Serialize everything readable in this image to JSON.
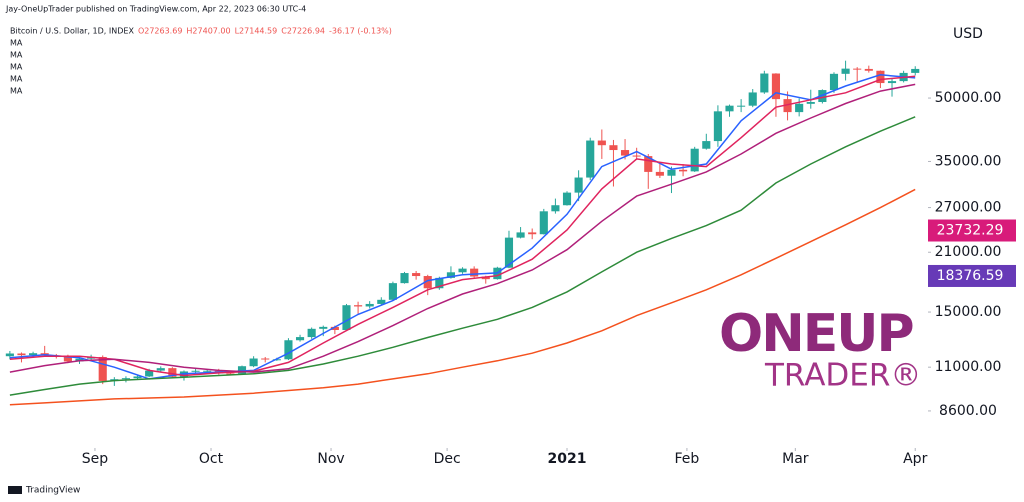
{
  "header": {
    "published": "Jay-OneUpTrader published on TradingView.com, Apr 22, 2023 06:30 UTC-4"
  },
  "chart_data": {
    "type": "candlestick",
    "symbol": "Bitcoin / U.S. Dollar, 1D, INDEX",
    "legend_values": [
      "O27263.69",
      "H27407.00",
      "L27144.59",
      "C27226.94",
      "-36.17 (-0.13%)"
    ],
    "currency": "USD",
    "log_scale": true,
    "up_color": "#26a69a",
    "down_color": "#ef5350",
    "ylim": [
      7100,
      76700
    ],
    "yticks": [
      {
        "value": 50000,
        "label": "50000.00"
      },
      {
        "value": 35000,
        "label": "35000.00"
      },
      {
        "value": 27000,
        "label": "27000.00"
      },
      {
        "value": 21000,
        "label": "21000.00"
      },
      {
        "value": 15000,
        "label": "15000.00"
      },
      {
        "value": 11000,
        "label": "11000.00"
      },
      {
        "value": 8600,
        "label": "8600.00"
      }
    ],
    "price_tags": [
      {
        "value": 23732.29,
        "color": "#d81b7a"
      },
      {
        "value": 18376.59,
        "color": "#673ab7"
      }
    ],
    "xlim": [
      -0.85,
      79.1
    ],
    "xticks": [
      {
        "value": 7.33,
        "label": "Sep"
      },
      {
        "value": 17.33,
        "label": "Oct"
      },
      {
        "value": 27.67,
        "label": "Nov"
      },
      {
        "value": 37.67,
        "label": "Dec"
      },
      {
        "value": 48,
        "label": "2021"
      },
      {
        "value": 58.33,
        "label": "Feb"
      },
      {
        "value": 67.67,
        "label": "Mar"
      },
      {
        "value": 78,
        "label": "Apr"
      }
    ],
    "candles": {
      "open": [
        11700,
        11880,
        11770,
        11900,
        11750,
        11680,
        11360,
        11540,
        11650,
        10180,
        10280,
        10340,
        10440,
        10790,
        10940,
        10420,
        10740,
        10780,
        10780,
        10620,
        10600,
        11060,
        11550,
        11500,
        11500,
        12800,
        13030,
        13650,
        13800,
        13560,
        15590,
        15480,
        15700,
        16070,
        17650,
        18680,
        18370,
        17150,
        18180,
        18760,
        19150,
        18320,
        18050,
        19250,
        22800,
        23480,
        23240,
        26440,
        27360,
        29370,
        31970,
        39370,
        38350,
        37320,
        36180,
        36070,
        33000,
        32300,
        33400,
        33100,
        37600,
        39250,
        46400,
        47900,
        47900,
        51600,
        57400,
        49700,
        46200,
        48400,
        48900,
        52300,
        57300,
        59000,
        58900,
        58300,
        54400,
        55000,
        57600
      ],
      "high": [
        12050,
        11950,
        12000,
        12400,
        11850,
        11800,
        11600,
        11800,
        11750,
        10400,
        10450,
        10500,
        10900,
        11050,
        11000,
        10800,
        10900,
        10850,
        10900,
        10700,
        11100,
        11700,
        11650,
        11600,
        12950,
        13200,
        13750,
        13900,
        13900,
        15700,
        15900,
        15950,
        16300,
        17800,
        18800,
        18900,
        18500,
        18300,
        19400,
        19300,
        19400,
        18400,
        19350,
        23700,
        24200,
        24000,
        26800,
        28400,
        29600,
        33300,
        40000,
        41900,
        39500,
        39700,
        37800,
        36500,
        34900,
        34000,
        34500,
        38000,
        40900,
        48000,
        48200,
        49700,
        52600,
        58300,
        57500,
        51900,
        49900,
        52400,
        52500,
        57800,
        61700,
        59500,
        60000,
        58400,
        55800,
        58300,
        59800
      ],
      "low": [
        11500,
        11300,
        11650,
        11700,
        11550,
        11250,
        11200,
        11450,
        10000,
        9900,
        10100,
        10250,
        10400,
        10700,
        10350,
        10200,
        10650,
        10600,
        10550,
        10500,
        10550,
        11000,
        11300,
        11400,
        11450,
        12700,
        12900,
        13100,
        13250,
        13500,
        14800,
        15300,
        15650,
        16000,
        17600,
        18000,
        16500,
        17000,
        18100,
        18600,
        18200,
        17600,
        18000,
        19200,
        22700,
        22600,
        23200,
        26100,
        27300,
        28000,
        31500,
        35500,
        30400,
        35400,
        35500,
        30000,
        31900,
        29300,
        32200,
        33000,
        37400,
        38000,
        45000,
        46200,
        47500,
        51200,
        45000,
        44100,
        45100,
        47100,
        48500,
        51500,
        55200,
        54600,
        57700,
        52900,
        50400,
        54600,
        56800
      ],
      "close": [
        11880,
        11770,
        11900,
        11750,
        11680,
        11360,
        11540,
        11650,
        10180,
        10280,
        10340,
        10440,
        10790,
        10940,
        10420,
        10740,
        10780,
        10780,
        10620,
        10600,
        11060,
        11550,
        11500,
        11500,
        12800,
        13030,
        13650,
        13800,
        13560,
        15590,
        15480,
        15700,
        16070,
        17650,
        18680,
        18370,
        17150,
        18180,
        18760,
        19150,
        18320,
        18050,
        19250,
        22800,
        23480,
        23240,
        26440,
        27360,
        29370,
        31970,
        39370,
        38350,
        37320,
        36180,
        36070,
        33000,
        32300,
        33400,
        33100,
        37600,
        39250,
        46400,
        47900,
        47900,
        51600,
        57400,
        49700,
        46200,
        48400,
        48900,
        52300,
        57300,
        59000,
        58900,
        58300,
        54400,
        55000,
        57600,
        58900
      ]
    },
    "moving_averages": {
      "x": [
        0,
        3,
        6,
        9,
        12,
        15,
        18,
        21,
        24,
        27,
        30,
        33,
        36,
        39,
        42,
        45,
        48,
        51,
        54,
        57,
        60,
        63,
        66,
        69,
        72,
        75,
        78
      ],
      "series": [
        {
          "name": "MA",
          "color": "#2962ff",
          "values": [
            11600,
            11800,
            11600,
            11000,
            10300,
            10600,
            10700,
            10800,
            11900,
            13300,
            14800,
            16000,
            17900,
            18500,
            18700,
            21500,
            26000,
            34000,
            37000,
            33500,
            34500,
            44000,
            51500,
            49500,
            53500,
            57000,
            56000
          ]
        },
        {
          "name": "MA",
          "color": "#e0245e",
          "values": [
            11500,
            11700,
            11700,
            11500,
            10800,
            10500,
            10650,
            10750,
            11300,
            12600,
            14000,
            15400,
            17000,
            18000,
            18400,
            20200,
            23800,
            30000,
            35500,
            34500,
            34000,
            40000,
            47500,
            49500,
            51500,
            55500,
            56500
          ]
        },
        {
          "name": "MA",
          "color": "#b0207a",
          "values": [
            10700,
            11100,
            11400,
            11500,
            11300,
            11000,
            10800,
            10700,
            10900,
            11700,
            12700,
            13900,
            15300,
            16600,
            17600,
            19000,
            21300,
            25000,
            28800,
            30800,
            33000,
            36500,
            41000,
            44700,
            48500,
            52000,
            54000
          ]
        },
        {
          "name": "MA",
          "color": "#2e8b3a",
          "values": [
            9400,
            9700,
            10000,
            10200,
            10300,
            10400,
            10500,
            10600,
            10800,
            11200,
            11700,
            12300,
            13000,
            13700,
            14400,
            15400,
            16800,
            18800,
            21000,
            22700,
            24400,
            26600,
            31000,
            34500,
            38000,
            41500,
            45000
          ]
        },
        {
          "name": "MA",
          "color": "#f4511e",
          "values": [
            8900,
            9000,
            9100,
            9200,
            9250,
            9300,
            9400,
            9500,
            9650,
            9800,
            10000,
            10300,
            10600,
            11000,
            11400,
            11900,
            12600,
            13500,
            14700,
            15800,
            17000,
            18500,
            20300,
            22300,
            24500,
            27000,
            29900
          ]
        }
      ]
    }
  },
  "logo": {
    "line1": "ONEUP",
    "line2": "TRADER®"
  },
  "footer": {
    "brand": "TradingView"
  }
}
